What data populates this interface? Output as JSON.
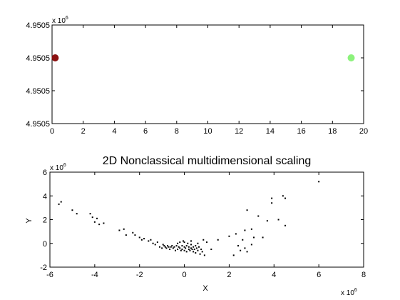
{
  "chart_data": [
    {
      "type": "scatter",
      "multiplier": {
        "base": "x 10",
        "exp": "6"
      },
      "xlim": [
        0,
        20
      ],
      "ylim": [
        0,
        3
      ],
      "xticks": [
        "0",
        "2",
        "4",
        "6",
        "8",
        "10",
        "12",
        "14",
        "16",
        "18",
        "20"
      ],
      "yticks": [
        {
          "v": 3,
          "label": "4.9505"
        },
        {
          "v": 2,
          "label": "4.9505"
        },
        {
          "v": 1,
          "label": "4.9505"
        },
        {
          "v": 0,
          "label": "4.9505"
        }
      ],
      "grid": false,
      "points": [
        {
          "x": 0.2,
          "y": 2.0,
          "color": "#8b1010",
          "size": 5
        },
        {
          "x": 19.2,
          "y": 2.0,
          "color": "#8cf27c",
          "size": 5
        }
      ]
    },
    {
      "type": "scatter",
      "title": "2D Nonclassical multidimensional scaling",
      "xlabel": "X",
      "ylabel": "Y",
      "xlim": [
        -6,
        8
      ],
      "ylim": [
        -2,
        6
      ],
      "xticks": [
        "-6",
        "-4",
        "-2",
        "0",
        "2",
        "4",
        "6",
        "8"
      ],
      "yticks": [
        "-2",
        "0",
        "2",
        "4",
        "6"
      ],
      "ymultiplier": {
        "base": "x 10",
        "exp": "6"
      },
      "xmultiplier": {
        "base": "x 10",
        "exp": "6"
      },
      "grid": false,
      "marker_color": "#000000",
      "points": [
        [
          -5.6,
          3.3
        ],
        [
          -5.5,
          3.5
        ],
        [
          -5.0,
          2.8
        ],
        [
          -4.8,
          2.5
        ],
        [
          -4.2,
          2.5
        ],
        [
          -4.1,
          2.2
        ],
        [
          -3.9,
          2.1
        ],
        [
          -4.0,
          1.8
        ],
        [
          -3.8,
          1.6
        ],
        [
          -3.6,
          1.7
        ],
        [
          -2.9,
          1.1
        ],
        [
          -2.7,
          1.2
        ],
        [
          -2.6,
          0.7
        ],
        [
          -2.3,
          0.9
        ],
        [
          -2.2,
          0.7
        ],
        [
          -2.0,
          0.5
        ],
        [
          -1.9,
          0.3
        ],
        [
          -1.8,
          0.4
        ],
        [
          -1.6,
          0.2
        ],
        [
          -1.5,
          0.3
        ],
        [
          -1.4,
          0.0
        ],
        [
          -1.3,
          -0.1
        ],
        [
          -1.2,
          0.1
        ],
        [
          -1.1,
          -0.3
        ],
        [
          -1.0,
          -0.4
        ],
        [
          -0.95,
          -0.1
        ],
        [
          -0.9,
          -0.2
        ],
        [
          -0.85,
          -0.3
        ],
        [
          -0.8,
          -0.4
        ],
        [
          -0.75,
          -0.2
        ],
        [
          -0.7,
          -0.3
        ],
        [
          -0.65,
          -0.5
        ],
        [
          -0.6,
          -0.3
        ],
        [
          -0.55,
          -0.2
        ],
        [
          -0.5,
          -0.4
        ],
        [
          -0.45,
          -0.3
        ],
        [
          -0.4,
          -0.6
        ],
        [
          -0.35,
          -0.2
        ],
        [
          -0.3,
          -0.5
        ],
        [
          -0.25,
          -0.3
        ],
        [
          -0.2,
          0.1
        ],
        [
          -0.2,
          -0.4
        ],
        [
          -0.15,
          -0.6
        ],
        [
          -0.1,
          -0.2
        ],
        [
          -0.1,
          -0.5
        ],
        [
          -0.05,
          0.2
        ],
        [
          0.0,
          -0.3
        ],
        [
          0.0,
          -0.6
        ],
        [
          0.05,
          -0.4
        ],
        [
          0.1,
          -0.2
        ],
        [
          0.1,
          -0.7
        ],
        [
          0.15,
          0.0
        ],
        [
          0.2,
          -0.5
        ],
        [
          0.2,
          -0.3
        ],
        [
          0.25,
          -0.6
        ],
        [
          0.3,
          -0.4
        ],
        [
          0.3,
          -0.1
        ],
        [
          0.35,
          -0.5
        ],
        [
          0.4,
          -0.3
        ],
        [
          0.4,
          -0.7
        ],
        [
          0.45,
          -0.5
        ],
        [
          0.5,
          -0.2
        ],
        [
          0.5,
          -0.8
        ],
        [
          0.55,
          -0.4
        ],
        [
          0.6,
          -0.6
        ],
        [
          0.65,
          -0.3
        ],
        [
          0.7,
          -0.9
        ],
        [
          0.75,
          -0.5
        ],
        [
          0.8,
          -0.7
        ],
        [
          0.85,
          0.3
        ],
        [
          0.9,
          -1.0
        ],
        [
          1.0,
          0.1
        ],
        [
          0.3,
          0.2
        ],
        [
          0.0,
          0.1
        ],
        [
          -0.3,
          0.0
        ],
        [
          0.6,
          0.0
        ],
        [
          1.2,
          -0.5
        ],
        [
          1.5,
          0.3
        ],
        [
          2.0,
          0.6
        ],
        [
          2.2,
          -1.0
        ],
        [
          2.3,
          0.8
        ],
        [
          2.4,
          -0.2
        ],
        [
          2.5,
          -0.6
        ],
        [
          2.6,
          0.3
        ],
        [
          2.7,
          -0.4
        ],
        [
          2.7,
          1.1
        ],
        [
          2.8,
          -0.7
        ],
        [
          2.8,
          2.8
        ],
        [
          3.0,
          1.2
        ],
        [
          3.0,
          -0.1
        ],
        [
          3.1,
          0.5
        ],
        [
          3.3,
          2.3
        ],
        [
          3.5,
          0.5
        ],
        [
          3.7,
          1.9
        ],
        [
          3.9,
          3.4
        ],
        [
          3.9,
          3.8
        ],
        [
          4.2,
          2.0
        ],
        [
          4.4,
          4.0
        ],
        [
          4.5,
          3.8
        ],
        [
          4.5,
          1.5
        ],
        [
          6.0,
          5.2
        ]
      ]
    }
  ]
}
